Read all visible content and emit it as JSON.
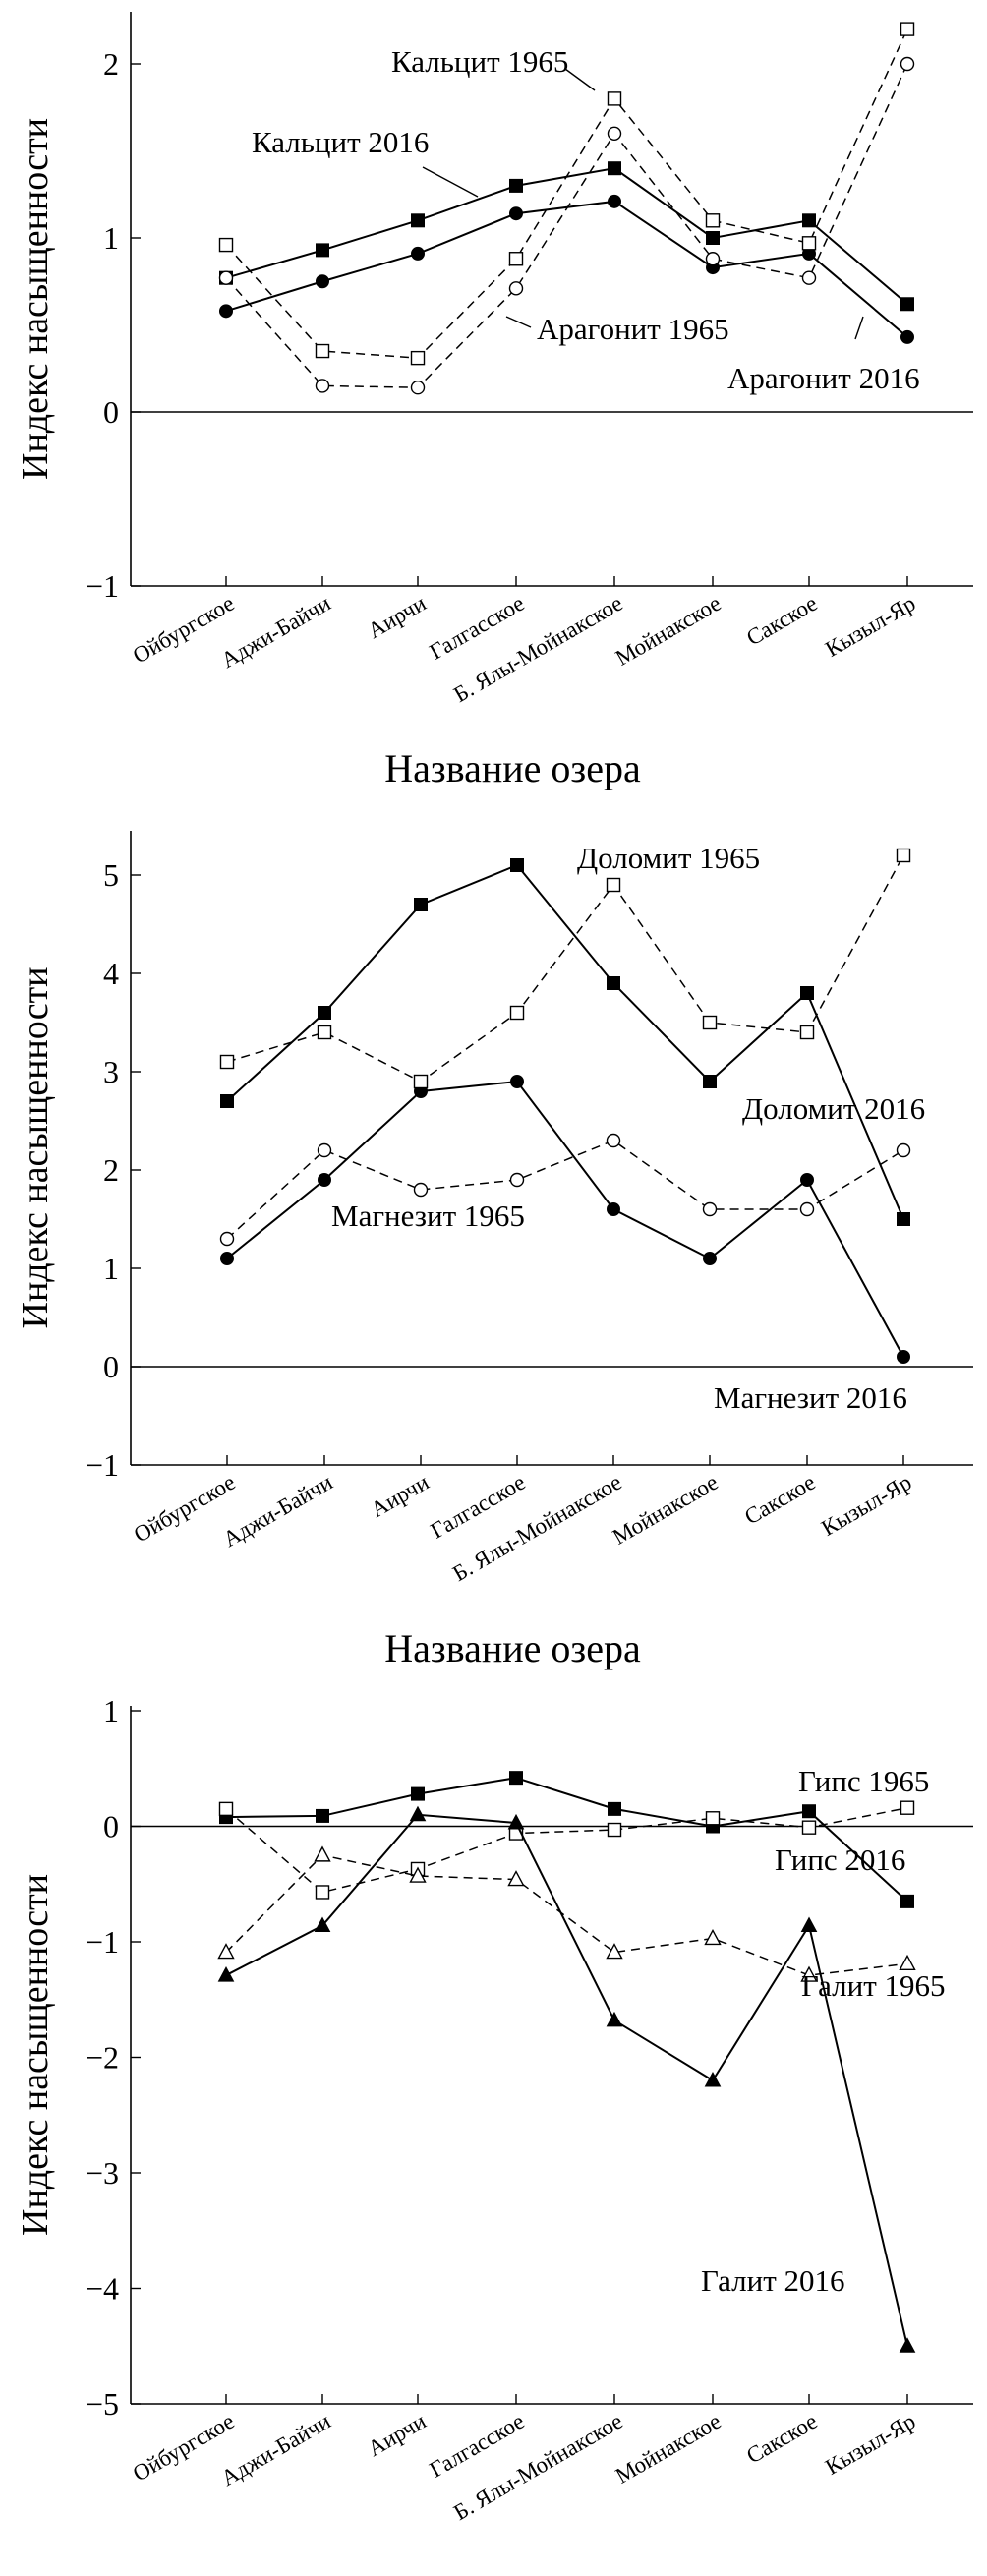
{
  "chart_data": [
    {
      "type": "line",
      "categories": [
        "Ойбургское",
        "Аджи-Байчи",
        "Аирчи",
        "Галгасское",
        "Б. Ялы-Мойнакское",
        "Мойнакское",
        "Сакское",
        "Кызыл-Яр"
      ],
      "xlabel": "Название озера",
      "ylabel": "Индекс насыщенности",
      "ylim": [
        -1,
        2.3
      ],
      "yticks": [
        -1,
        0,
        1,
        2
      ],
      "zero_line": true,
      "series": [
        {
          "name": "Кальцит 2016",
          "marker": "filled-square",
          "dashed": false,
          "values": [
            0.77,
            0.93,
            1.1,
            1.3,
            1.4,
            1.0,
            1.1,
            0.62
          ]
        },
        {
          "name": "Арагонит 2016",
          "marker": "filled-circle",
          "dashed": false,
          "values": [
            0.58,
            0.75,
            0.91,
            1.14,
            1.21,
            0.83,
            0.91,
            0.43
          ]
        },
        {
          "name": "Кальцит 1965",
          "marker": "open-square",
          "dashed": true,
          "values": [
            0.96,
            0.35,
            0.31,
            0.88,
            1.8,
            1.1,
            0.97,
            2.2
          ]
        },
        {
          "name": "Арагонит 1965",
          "marker": "open-circle",
          "dashed": true,
          "values": [
            0.77,
            0.15,
            0.14,
            0.71,
            1.6,
            0.88,
            0.77,
            2.0
          ]
        }
      ],
      "annotations": [
        "Кальцит 1965",
        "Кальцит 2016",
        "Арагонит 1965",
        "Арагонит 2016"
      ]
    },
    {
      "type": "line",
      "categories": [
        "Ойбургское",
        "Аджи-Байчи",
        "Аирчи",
        "Галгасское",
        "Б. Ялы-Мойнакское",
        "Мойнакское",
        "Сакское",
        "Кызыл-Яр"
      ],
      "xlabel": "Название озера",
      "ylabel": "Индекс насыщенности",
      "ylim": [
        -1,
        5.4
      ],
      "yticks": [
        -1,
        0,
        1,
        2,
        3,
        4,
        5
      ],
      "zero_line": true,
      "series": [
        {
          "name": "Доломит 2016",
          "marker": "filled-square",
          "dashed": false,
          "values": [
            2.7,
            3.6,
            4.7,
            5.1,
            3.9,
            2.9,
            3.8,
            1.5
          ]
        },
        {
          "name": "Магнезит 2016",
          "marker": "filled-circle",
          "dashed": false,
          "values": [
            1.1,
            1.9,
            2.8,
            2.9,
            1.6,
            1.1,
            1.9,
            0.1
          ]
        },
        {
          "name": "Доломит 1965",
          "marker": "open-square",
          "dashed": true,
          "values": [
            3.1,
            3.4,
            2.9,
            3.6,
            4.9,
            3.5,
            3.4,
            5.2
          ]
        },
        {
          "name": "Магнезит 1965",
          "marker": "open-circle",
          "dashed": true,
          "values": [
            1.3,
            2.2,
            1.8,
            1.9,
            2.3,
            1.6,
            1.6,
            2.2
          ]
        }
      ],
      "annotations": [
        "Доломит 1965",
        "Доломит 2016",
        "Магнезит 1965",
        "Магнезит 2016"
      ]
    },
    {
      "type": "line",
      "categories": [
        "Ойбургское",
        "Аджи-Байчи",
        "Аирчи",
        "Галгасское",
        "Б. Ялы-Мойнакское",
        "Мойнакское",
        "Сакское",
        "Кызыл-Яр"
      ],
      "xlabel": "Название озера",
      "ylabel": "Индекс насыщенности",
      "ylim": [
        -5,
        1
      ],
      "yticks": [
        -5,
        -4,
        -3,
        -2,
        -1,
        0,
        1
      ],
      "zero_line": true,
      "series": [
        {
          "name": "Гипс 2016",
          "marker": "filled-square",
          "dashed": false,
          "values": [
            0.08,
            0.09,
            0.28,
            0.42,
            0.15,
            0.0,
            0.13,
            -0.65
          ]
        },
        {
          "name": "Гипс 1965",
          "marker": "open-square",
          "dashed": true,
          "values": [
            0.15,
            -0.57,
            -0.37,
            -0.06,
            -0.03,
            0.07,
            -0.01,
            0.16
          ]
        },
        {
          "name": "Галит 2016",
          "marker": "filled-triangle",
          "dashed": false,
          "values": [
            -1.29,
            -0.86,
            0.1,
            0.03,
            -1.68,
            -2.2,
            -0.86,
            -4.5
          ]
        },
        {
          "name": "Галит 1965",
          "marker": "open-triangle",
          "dashed": true,
          "values": [
            -1.09,
            -0.25,
            -0.43,
            -0.46,
            -1.09,
            -0.97,
            -1.29,
            -1.19
          ]
        }
      ],
      "annotations": [
        "Гипс 1965",
        "Гипс 2016",
        "Галит 1965",
        "Галит 2016"
      ]
    }
  ]
}
